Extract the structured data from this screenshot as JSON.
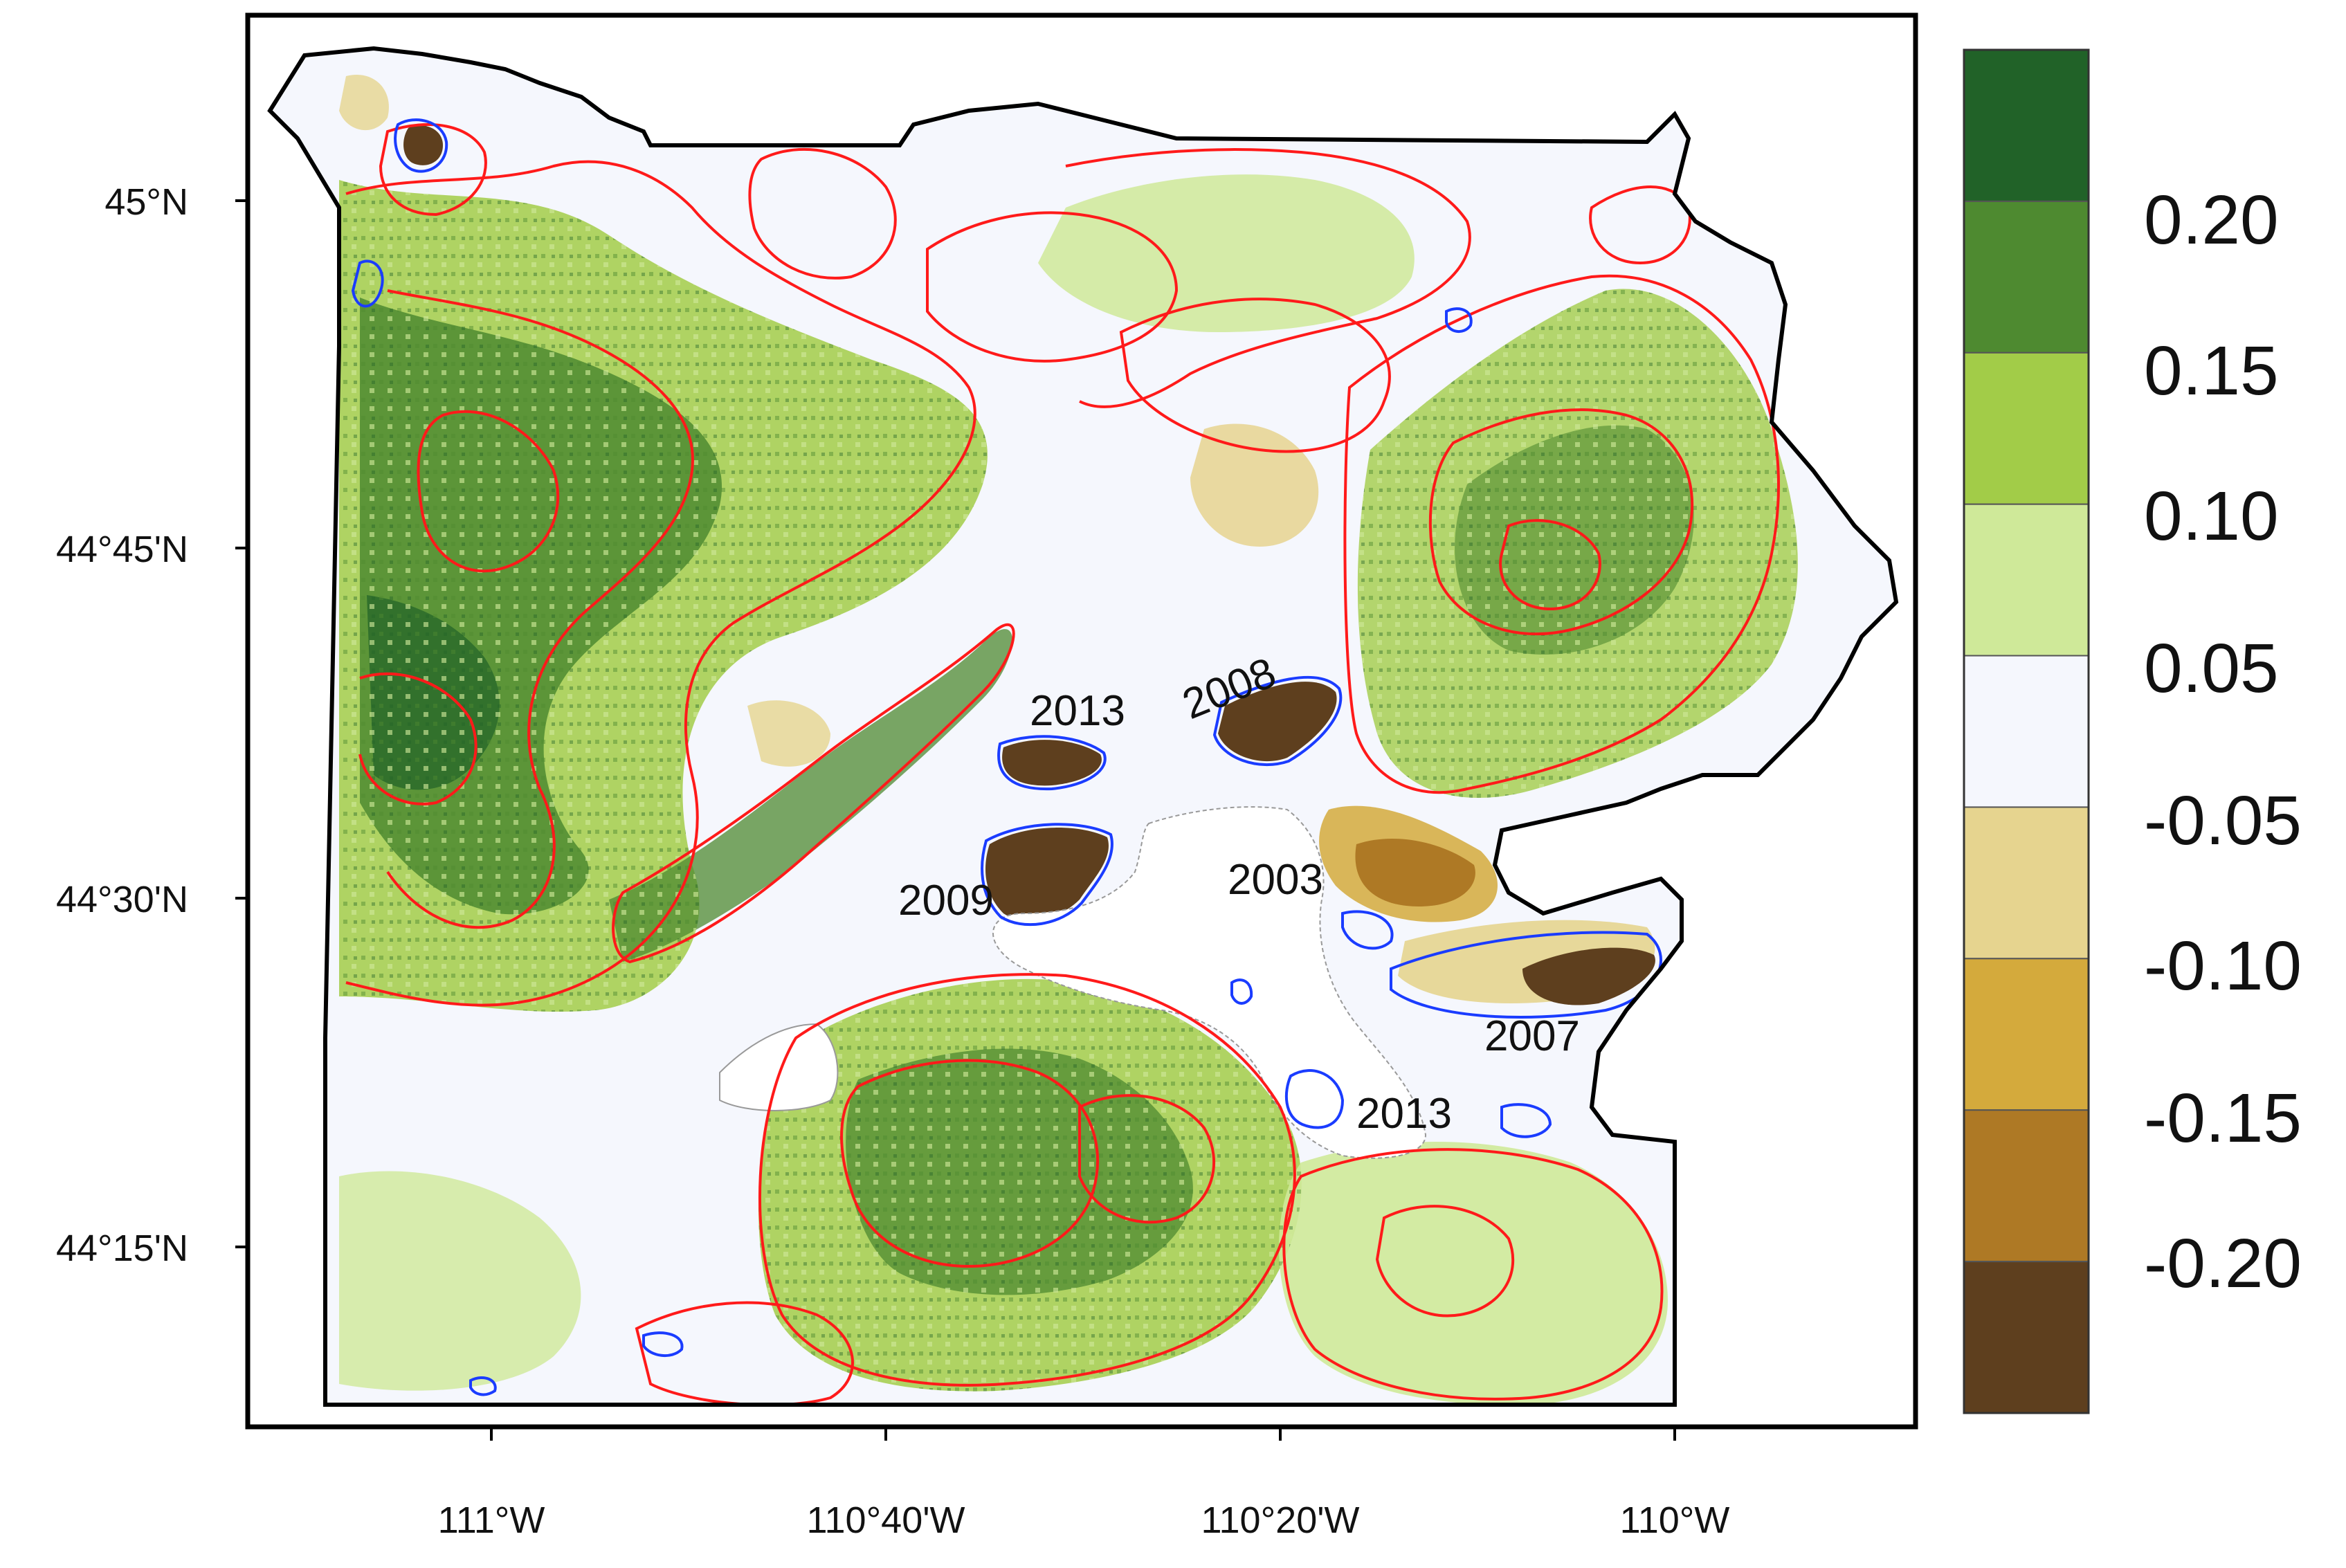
{
  "map": {
    "y_ticks": [
      "45°N",
      "44°45'N",
      "44°30'N",
      "44°15'N"
    ],
    "x_ticks": [
      "111°W",
      "110°40'W",
      "110°20'W",
      "110°W"
    ],
    "fire_labels": [
      "2013",
      "2008",
      "2009",
      "2003",
      "2007",
      "2013"
    ]
  },
  "legend": {
    "labels": [
      "0.20",
      "0.15",
      "0.10",
      "0.05",
      "-0.05",
      "-0.10",
      "-0.15",
      "-0.20"
    ],
    "colors": [
      "#216228",
      "#4e8a30",
      "#a2cc48",
      "#cfe999",
      "#f5f7fd",
      "#e6d48f",
      "#d4aa3c",
      "#ae7925",
      "#5e3f1e"
    ]
  },
  "colors": {
    "fire_perimeter": "#ff1a1a",
    "lake_outline": "#1a3cff",
    "boundary": "#000000"
  },
  "chart_data": {
    "type": "heatmap",
    "x_ticks": [
      "111°W",
      "110°40'W",
      "110°20'W",
      "110°W"
    ],
    "y_ticks": [
      "45°N",
      "44°45'N",
      "44°30'N",
      "44°15'N"
    ],
    "color_scale_labels": [
      "0.20",
      "0.15",
      "0.10",
      "0.05",
      "-0.05",
      "-0.10",
      "-0.15",
      "-0.20"
    ],
    "annotations": [
      "2013",
      "2008",
      "2009",
      "2003",
      "2007",
      "2013"
    ]
  }
}
